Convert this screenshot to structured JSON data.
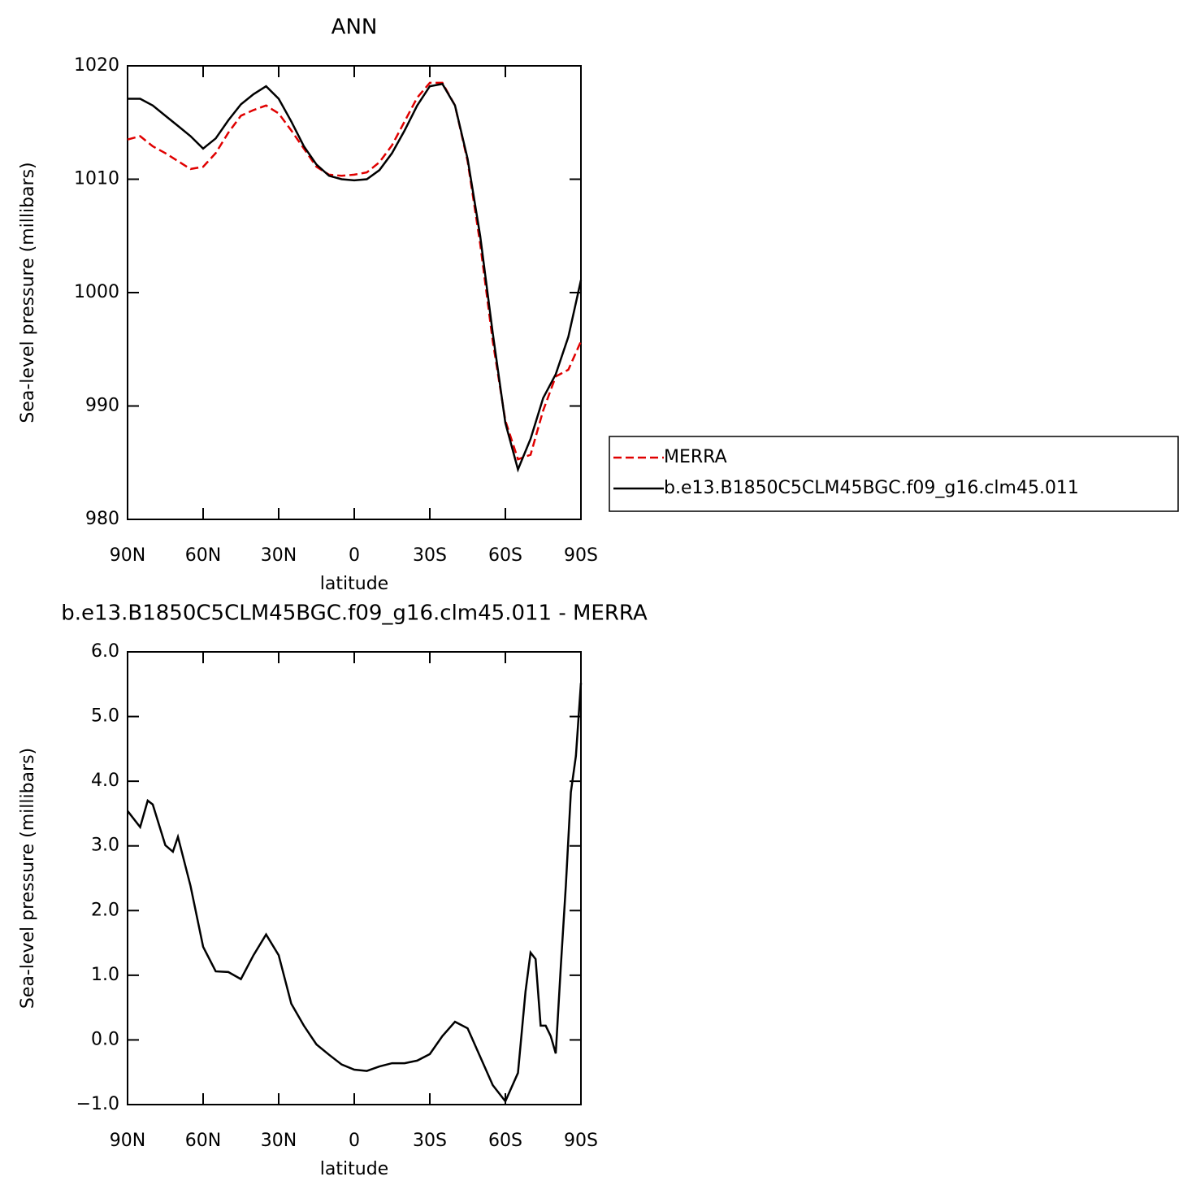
{
  "chart_data": [
    {
      "type": "line",
      "title": "ANN",
      "x_label": "latitude",
      "y_label": "Sea-level pressure (millibars)",
      "x": [
        90,
        85,
        80,
        75,
        70,
        65,
        60,
        55,
        50,
        45,
        40,
        35,
        30,
        25,
        20,
        15,
        10,
        5,
        0,
        -5,
        -10,
        -15,
        -20,
        -25,
        -30,
        -35,
        -40,
        -45,
        -50,
        -55,
        -60,
        -65,
        -70,
        -75,
        -80,
        -85,
        -90
      ],
      "series": [
        {
          "name": "MERRA",
          "color": "#e00000",
          "line_style": "dashed",
          "values": [
            1013.5,
            1013.8,
            1012.9,
            1012.3,
            1011.6,
            1010.9,
            1011.1,
            1012.3,
            1014.1,
            1015.6,
            1016.1,
            1016.5,
            1015.8,
            1014.3,
            1012.7,
            1011.1,
            1010.4,
            1010.3,
            1010.4,
            1010.6,
            1011.5,
            1013.0,
            1015.1,
            1017.2,
            1018.5,
            1018.5,
            1016.5,
            1011.6,
            1004.3,
            995.7,
            988.7,
            985.3,
            985.7,
            989.6,
            992.6,
            993.2,
            995.7
          ]
        },
        {
          "name": "b.e13.B1850C5CLM45BGC.f09_g16.clm45.011",
          "color": "#000000",
          "line_style": "solid",
          "values": [
            1017.1,
            1017.1,
            1016.5,
            1015.6,
            1014.7,
            1013.8,
            1012.7,
            1013.6,
            1015.2,
            1016.6,
            1017.5,
            1018.2,
            1017.1,
            1015.1,
            1012.9,
            1011.3,
            1010.3,
            1010.0,
            1009.9,
            1010.0,
            1010.8,
            1012.3,
            1014.3,
            1016.5,
            1018.2,
            1018.4,
            1016.5,
            1011.8,
            1005.0,
            996.4,
            988.5,
            984.4,
            987.1,
            990.7,
            992.8,
            996.1,
            1001.1
          ]
        }
      ],
      "xlim": [
        90,
        -90
      ],
      "xticks": [
        {
          "value": 90,
          "label": "90N"
        },
        {
          "value": 60,
          "label": "60N"
        },
        {
          "value": 30,
          "label": "30N"
        },
        0,
        {
          "value": -30,
          "label": "30S"
        },
        {
          "value": -60,
          "label": "60S"
        },
        {
          "value": -90,
          "label": "90S"
        }
      ],
      "ylim": [
        980,
        1020
      ],
      "yticks": [
        980,
        990,
        1000,
        1010,
        1020
      ],
      "legend": "right",
      "grid": false
    },
    {
      "type": "line",
      "title": "b.e13.B1850C5CLM45BGC.f09_g16.clm45.011 - MERRA",
      "x_label": "latitude",
      "y_label": "Sea-level pressure (millibars)",
      "x": [
        90,
        85,
        82,
        80,
        75,
        72,
        70,
        65,
        60,
        55,
        50,
        45,
        40,
        35,
        30,
        25,
        20,
        15,
        10,
        5,
        0,
        -5,
        -10,
        -15,
        -20,
        -25,
        -30,
        -35,
        -40,
        -45,
        -50,
        -55,
        -60,
        -65,
        -68,
        -70,
        -72,
        -74,
        -76,
        -78,
        -80,
        -82,
        -84,
        -86,
        -88,
        -90
      ],
      "values": [
        3.54,
        3.29,
        3.7,
        3.64,
        3.01,
        2.91,
        3.14,
        2.38,
        1.44,
        1.06,
        1.05,
        0.94,
        1.31,
        1.63,
        1.31,
        0.56,
        0.22,
        -0.07,
        -0.23,
        -0.38,
        -0.46,
        -0.48,
        -0.41,
        -0.36,
        -0.36,
        -0.32,
        -0.22,
        0.06,
        0.28,
        0.18,
        -0.26,
        -0.7,
        -0.95,
        -0.51,
        0.75,
        1.35,
        1.25,
        0.22,
        0.22,
        0.06,
        -0.21,
        1.13,
        2.38,
        3.83,
        4.39,
        5.52
      ],
      "color": "#000000",
      "line_style": "solid",
      "xlim": [
        90,
        -90
      ],
      "xticks": [
        {
          "value": 90,
          "label": "90N"
        },
        {
          "value": 60,
          "label": "60N"
        },
        {
          "value": 30,
          "label": "30N"
        },
        0,
        {
          "value": -30,
          "label": "30S"
        },
        {
          "value": -60,
          "label": "60S"
        },
        {
          "value": -90,
          "label": "90S"
        }
      ],
      "ylim": [
        -1,
        6
      ],
      "yticks": [
        {
          "value": -1,
          "label": "−1.0"
        },
        {
          "value": 0,
          "label": "0.0"
        },
        {
          "value": 1,
          "label": "1.0"
        },
        {
          "value": 2,
          "label": "2.0"
        },
        {
          "value": 3,
          "label": "3.0"
        },
        {
          "value": 4,
          "label": "4.0"
        },
        {
          "value": 5,
          "label": "5.0"
        },
        {
          "value": 6,
          "label": "6.0"
        }
      ],
      "grid": false
    }
  ]
}
